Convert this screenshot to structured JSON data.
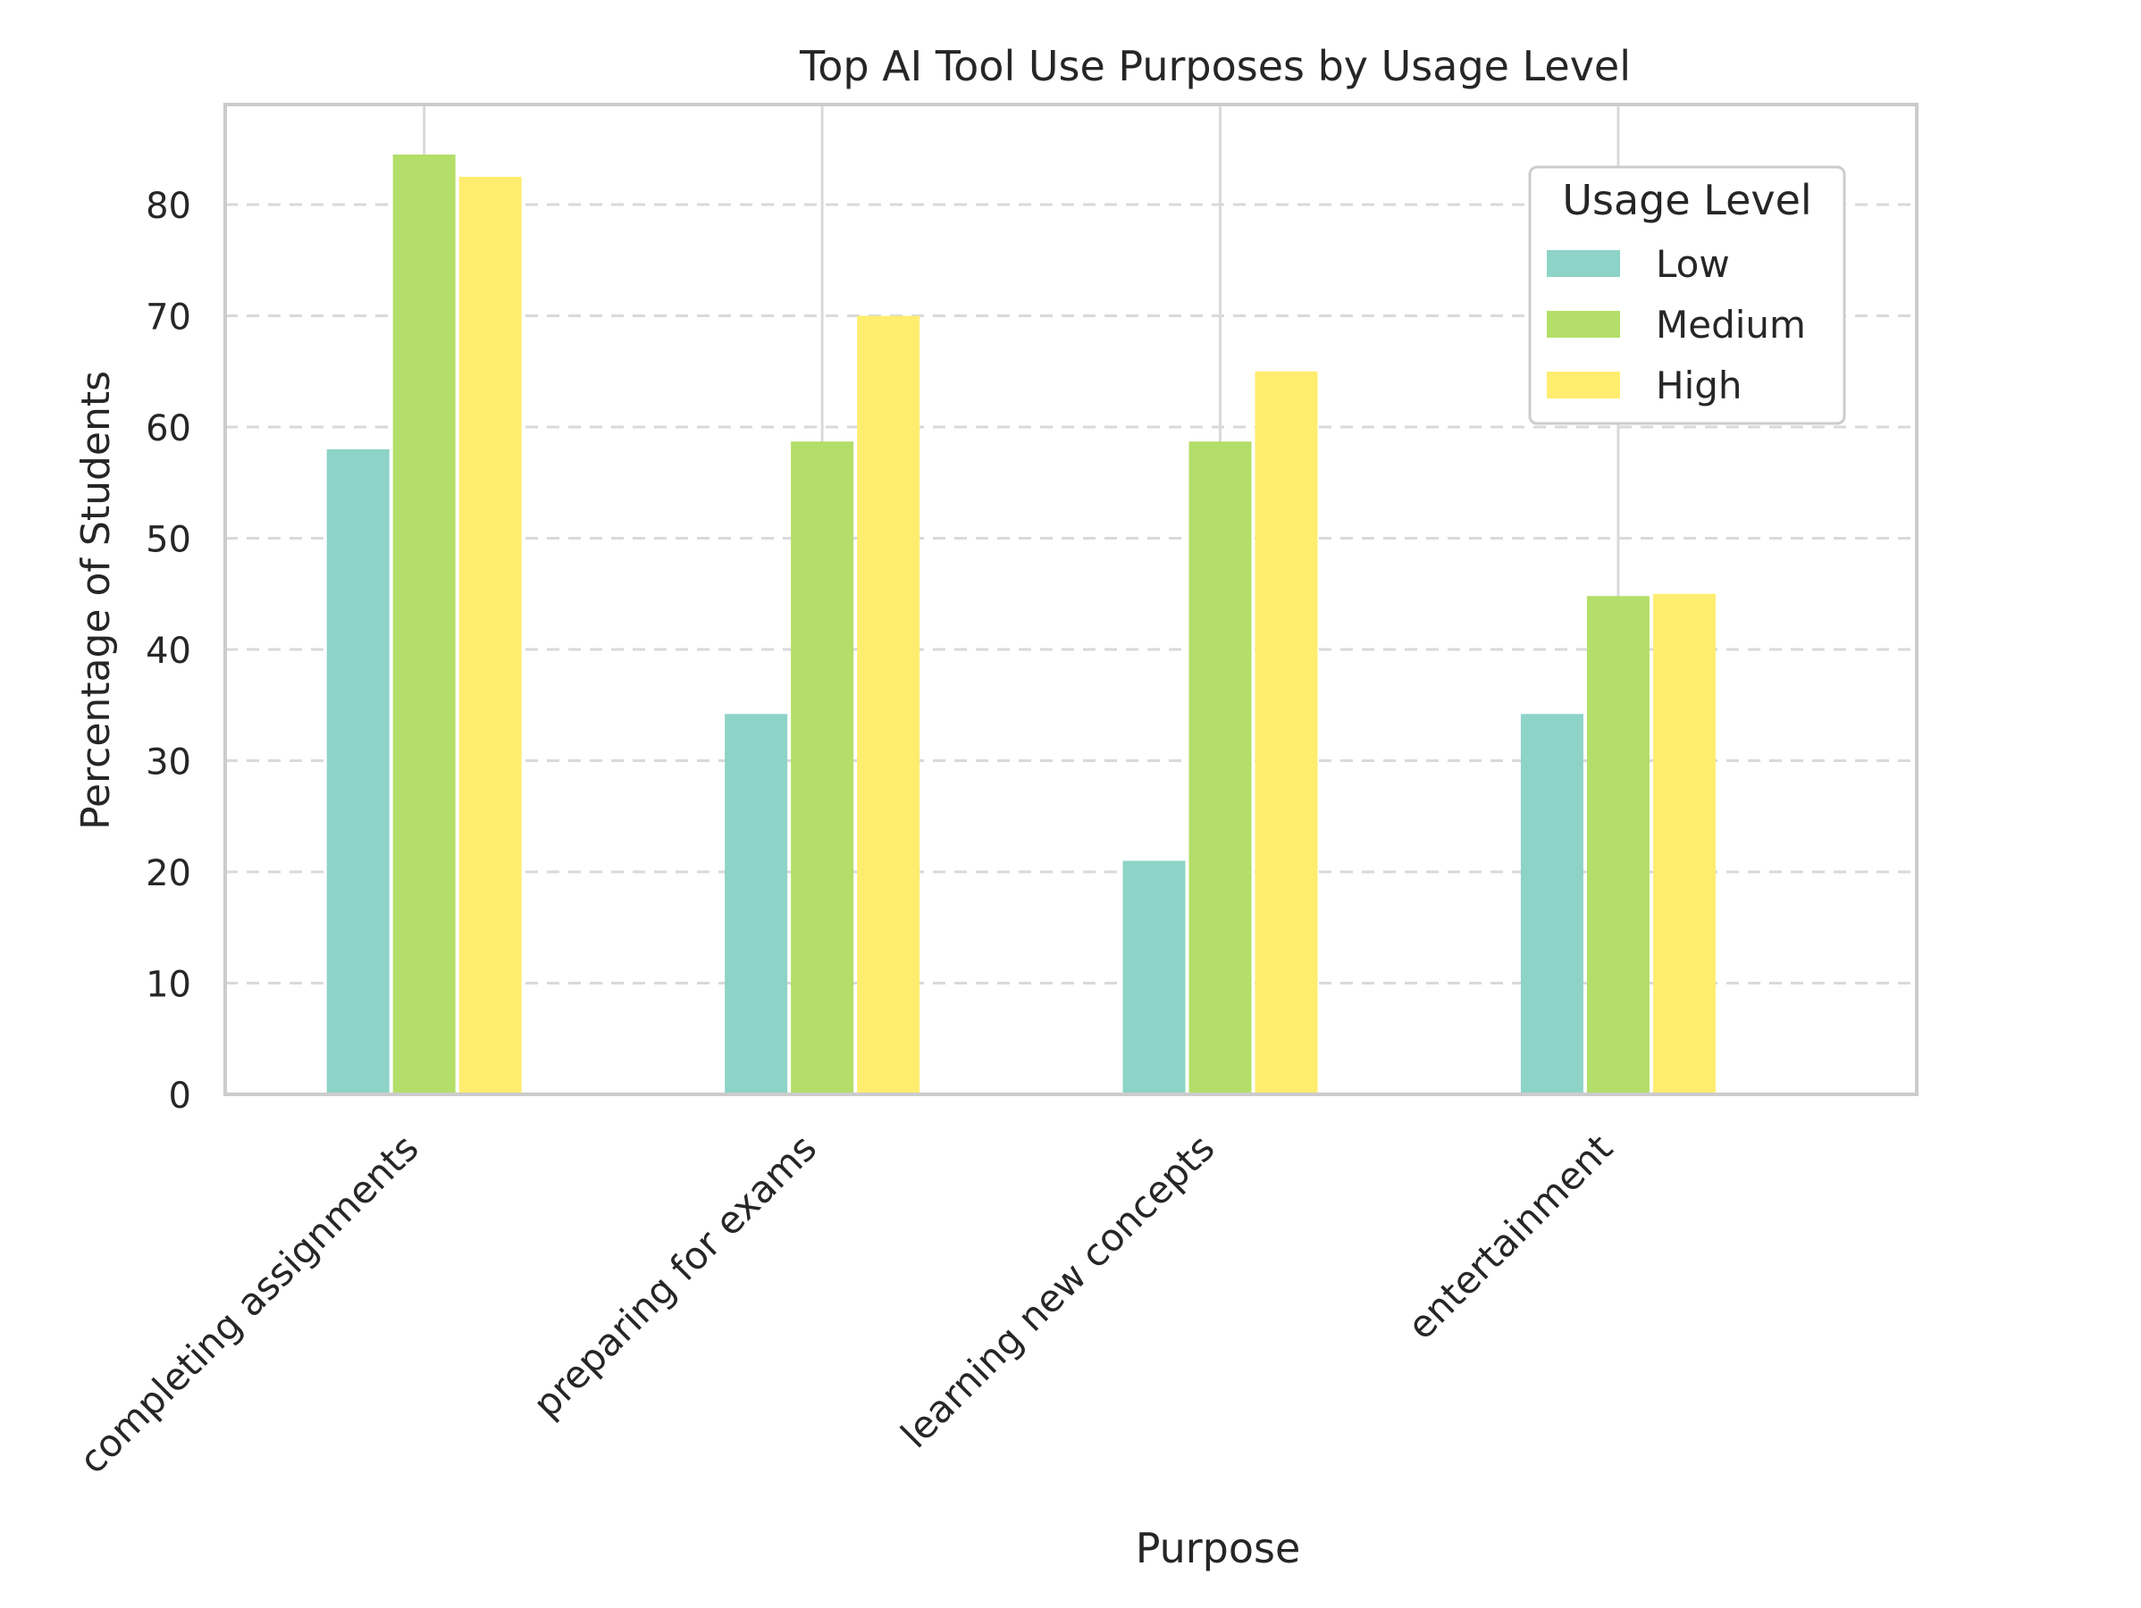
{
  "chart_data": {
    "type": "bar",
    "title": "Top AI Tool Use Purposes by Usage Level",
    "xlabel": "Purpose",
    "ylabel": "Percentage of Students",
    "categories": [
      "completing assignments",
      "preparing for exams",
      "learning new concepts",
      "entertainment"
    ],
    "series": [
      {
        "name": "Low",
        "color": "#8dd3c7",
        "values": [
          58,
          34.2,
          21,
          34.2
        ]
      },
      {
        "name": "Medium",
        "color": "#b3de69",
        "values": [
          84.5,
          58.7,
          58.7,
          44.8
        ]
      },
      {
        "name": "High",
        "color": "#ffed6f",
        "values": [
          82.5,
          70,
          65,
          45
        ]
      }
    ],
    "ylim": [
      0,
      89
    ],
    "yticks": [
      0,
      10,
      20,
      30,
      40,
      50,
      60,
      70,
      80
    ],
    "grid": "horizontal dashed",
    "legend": {
      "title": "Usage Level",
      "position": "top-right"
    }
  }
}
